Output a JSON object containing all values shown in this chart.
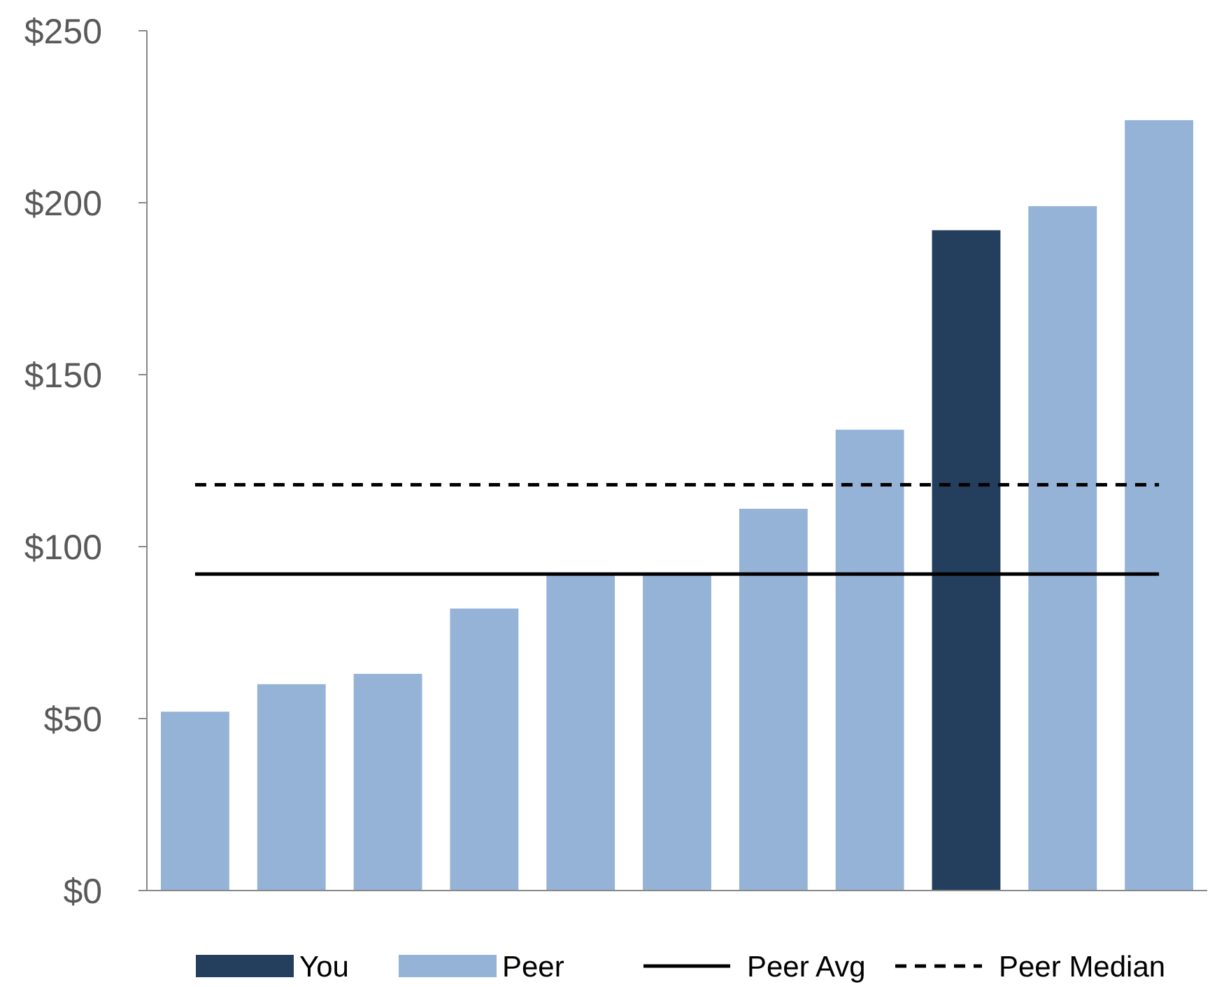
{
  "chart_data": {
    "type": "bar",
    "stacked": true,
    "categories": [
      null,
      null,
      null,
      null,
      null,
      null,
      null,
      null,
      null,
      null,
      null
    ],
    "series": [
      {
        "name": "You",
        "color": "#243f5e",
        "values": [
          null,
          null,
          null,
          null,
          null,
          null,
          null,
          null,
          192,
          null,
          null
        ]
      },
      {
        "name": "Peer",
        "color": "#95b3d7",
        "values": [
          52,
          60,
          63,
          82,
          92,
          92,
          111,
          134,
          null,
          199,
          224
        ]
      }
    ],
    "ylim": [
      0,
      250
    ],
    "yticks": [
      {
        "value": 0,
        "label": "$0"
      },
      {
        "value": 50,
        "label": "$50"
      },
      {
        "value": 100,
        "label": "$100"
      },
      {
        "value": 150,
        "label": "$150"
      },
      {
        "value": 200,
        "label": "$200"
      },
      {
        "value": 250,
        "label": "$250"
      }
    ],
    "ref_lines": [
      {
        "axis": "y",
        "value": 92,
        "label": "Peer Avg",
        "color": "#000000",
        "line_style": "solid"
      },
      {
        "axis": "y",
        "value": 118,
        "label": "Peer Median",
        "color": "#000000",
        "line_style": "dashed"
      }
    ],
    "grid": false,
    "legend": "bottom"
  }
}
